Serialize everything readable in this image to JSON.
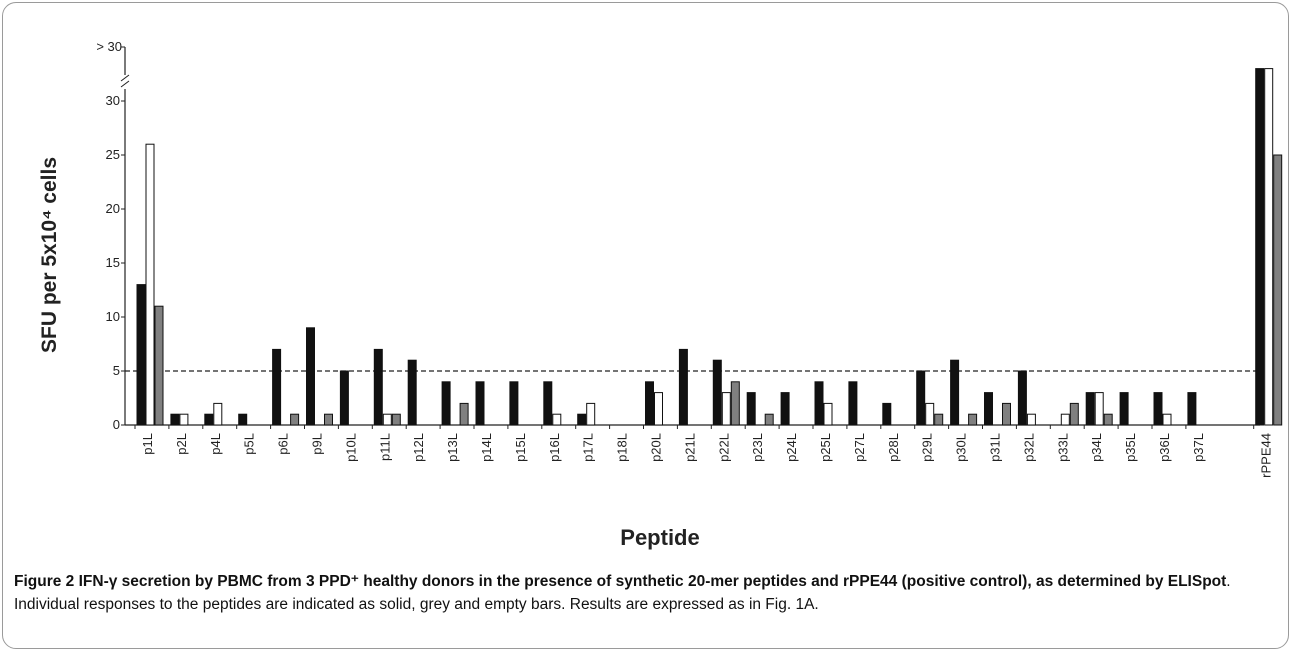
{
  "chart_data": {
    "type": "bar",
    "y_label": "SFU per 5x10⁴ cells",
    "x_label": "Peptide",
    "categories": [
      "p1L",
      "p2L",
      "p4L",
      "p5L",
      "p6L",
      "p9L",
      "p10L",
      "p11L",
      "p12L",
      "p13L",
      "p14L",
      "p15L",
      "p16L",
      "p17L",
      "p18L",
      "p20L",
      "p21L",
      "p22L",
      "p23L",
      "p24L",
      "p25L",
      "p27L",
      "p28L",
      "p29L",
      "p30L",
      "p31L",
      "p32L",
      "p33L",
      "p34L",
      "p35L",
      "p36L",
      "p37L",
      null,
      "rPPE44"
    ],
    "series": [
      {
        "color": "#111111",
        "values": [
          13,
          1,
          1,
          1,
          7,
          9,
          5,
          7,
          6,
          4,
          4,
          4,
          4,
          1,
          0,
          4,
          7,
          6,
          3,
          3,
          4,
          4,
          2,
          5,
          6,
          3,
          5,
          0,
          3,
          3,
          3,
          3,
          null,
          33
        ]
      },
      {
        "color": "#ffffff",
        "values": [
          26,
          1,
          2,
          0,
          0,
          0,
          0,
          1,
          0,
          0,
          0,
          0,
          1,
          2,
          0,
          3,
          0,
          3,
          0,
          0,
          2,
          0,
          0,
          2,
          0,
          0,
          1,
          1,
          3,
          0,
          1,
          0,
          null,
          33
        ]
      },
      {
        "color": "#808080",
        "values": [
          11,
          0,
          0,
          0,
          1,
          1,
          0,
          1,
          0,
          2,
          0,
          0,
          0,
          0,
          0,
          0,
          0,
          4,
          1,
          0,
          0,
          0,
          0,
          1,
          1,
          2,
          0,
          2,
          1,
          0,
          0,
          0,
          null,
          25
        ]
      }
    ],
    "threshold": 5,
    "ylim": [
      0,
      35
    ],
    "yticks": [
      0,
      5,
      10,
      15,
      20,
      25,
      30,
      {
        "value": 35,
        "label": "> 30"
      }
    ],
    "caption_label": "Figure 2",
    "caption_title": "IFN-γ secretion by PBMC from 3 PPD⁺ healthy donors in the presence of synthetic 20-mer peptides and rPPE44 (positive control), as determined by ELISpot",
    "caption_text": ". Individual responses to the peptides are indicated as solid, grey and empty bars. Results are expressed as in Fig. 1A."
  }
}
